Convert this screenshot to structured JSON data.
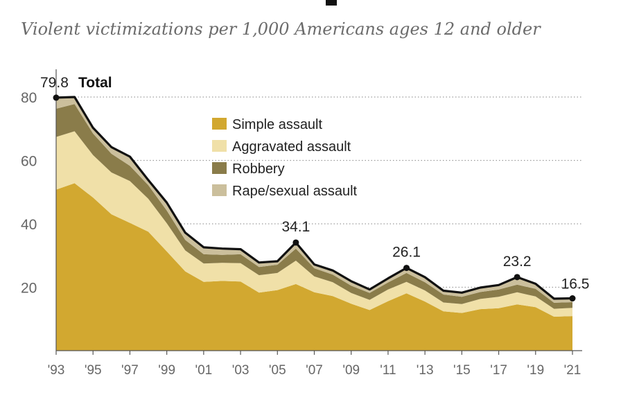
{
  "subtitle": "Violent victimizations per 1,000 Americans ages 12 and older",
  "chart_data": {
    "type": "area",
    "stacked": true,
    "title": "",
    "subtitle": "Violent victimizations per 1,000 Americans ages 12 and older",
    "xlabel": "",
    "ylabel": "",
    "xlim": [
      1993,
      2021
    ],
    "ylim": [
      0,
      80
    ],
    "yticks": [
      20,
      40,
      60,
      80
    ],
    "ytick_labels": [
      "20",
      "40",
      "60",
      "80"
    ],
    "xticks": [
      1993,
      1995,
      1997,
      1999,
      2001,
      2003,
      2005,
      2007,
      2009,
      2011,
      2013,
      2015,
      2017,
      2019,
      2021
    ],
    "xtick_labels": [
      "'93",
      "'95",
      "'97",
      "'99",
      "'01",
      "'03",
      "'05",
      "'07",
      "'09",
      "'11",
      "'13",
      "'15",
      "'17",
      "'19",
      "'21"
    ],
    "grid": "horizontal-dotted",
    "legend_position": "top-center",
    "x": [
      1993,
      1994,
      1995,
      1996,
      1997,
      1998,
      1999,
      2000,
      2001,
      2002,
      2003,
      2004,
      2005,
      2006,
      2007,
      2008,
      2009,
      2010,
      2011,
      2012,
      2013,
      2014,
      2015,
      2016,
      2017,
      2018,
      2019,
      2020,
      2021
    ],
    "series": [
      {
        "name": "Simple assault",
        "color": "#d2a830",
        "values": [
          50.8,
          52.8,
          48.3,
          43.0,
          40.3,
          37.5,
          31.3,
          25.0,
          21.7,
          22.0,
          21.8,
          18.3,
          19.1,
          21.0,
          18.4,
          17.2,
          14.8,
          12.8,
          15.6,
          18.1,
          15.5,
          12.4,
          11.9,
          13.1,
          13.4,
          14.6,
          13.7,
          10.7,
          10.9
        ]
      },
      {
        "name": "Aggravated assault",
        "color": "#f0e0a8",
        "values": [
          16.6,
          16.4,
          13.4,
          13.2,
          13.2,
          10.4,
          8.9,
          6.6,
          5.8,
          5.7,
          5.8,
          5.5,
          5.4,
          7.4,
          5.0,
          4.4,
          3.4,
          3.2,
          3.7,
          3.6,
          3.5,
          2.8,
          2.8,
          3.2,
          3.6,
          3.8,
          3.4,
          2.5,
          2.6
        ]
      },
      {
        "name": "Robbery",
        "color": "#8a7c4a",
        "values": [
          8.9,
          8.6,
          6.8,
          5.9,
          4.8,
          4.3,
          4.0,
          3.3,
          2.9,
          2.5,
          2.8,
          2.6,
          2.6,
          3.8,
          2.6,
          2.4,
          2.3,
          2.2,
          2.2,
          2.8,
          2.6,
          2.5,
          2.3,
          2.2,
          2.3,
          2.4,
          2.4,
          1.9,
          1.8
        ]
      },
      {
        "name": "Rape/sexual assault",
        "color": "#cbbf9c",
        "values": [
          3.5,
          2.2,
          1.8,
          2.1,
          2.9,
          1.6,
          2.5,
          2.3,
          2.2,
          2.0,
          1.6,
          1.4,
          1.1,
          1.9,
          1.2,
          1.3,
          1.4,
          1.1,
          1.3,
          1.6,
          1.6,
          1.2,
          1.3,
          1.4,
          1.4,
          2.4,
          1.6,
          1.2,
          1.2
        ]
      }
    ],
    "total": {
      "name": "Total",
      "color": "#111111",
      "values": [
        79.8,
        80.0,
        70.3,
        64.2,
        61.2,
        53.8,
        46.7,
        37.2,
        32.6,
        32.2,
        32.0,
        27.8,
        28.2,
        34.1,
        27.2,
        25.3,
        21.9,
        19.3,
        22.8,
        26.1,
        23.2,
        18.9,
        18.3,
        19.9,
        20.7,
        23.2,
        21.1,
        16.4,
        16.5
      ]
    },
    "annotations": [
      {
        "x": 1993,
        "y": 79.8,
        "value_label": "79.8",
        "name_label": "Total"
      },
      {
        "x": 2006,
        "y": 34.1,
        "value_label": "34.1"
      },
      {
        "x": 2012,
        "y": 26.1,
        "value_label": "26.1"
      },
      {
        "x": 2018,
        "y": 23.2,
        "value_label": "23.2"
      },
      {
        "x": 2021,
        "y": 16.5,
        "value_label": "16.5"
      }
    ],
    "legend_order": [
      "Simple assault",
      "Aggravated assault",
      "Robbery",
      "Rape/sexual assault"
    ]
  }
}
